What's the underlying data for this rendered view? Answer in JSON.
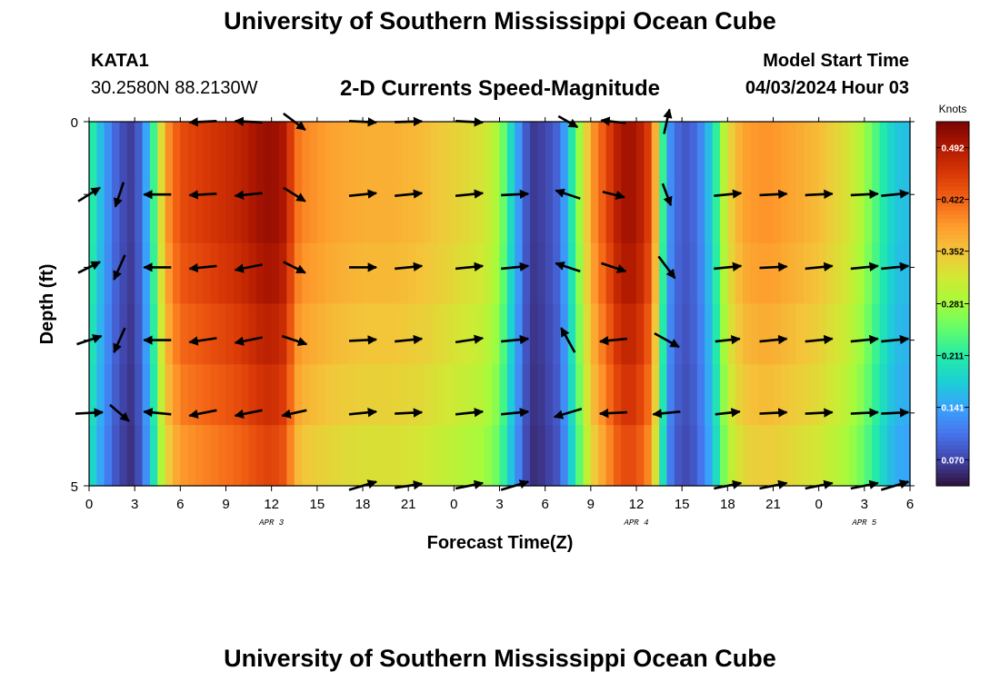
{
  "header": {
    "title": "University of Southern Mississippi Ocean Cube",
    "station": "KATA1",
    "coords": "30.2580N  88.2130W",
    "subtitle": "2-D Currents Speed-Magnitude",
    "model_start_label": "Model Start Time",
    "model_start_value": "04/03/2024 Hour 03"
  },
  "footer": {
    "title": "University of Southern Mississippi Ocean Cube"
  },
  "chart_data": {
    "type": "heatmap",
    "title": "2-D Currents Speed-Magnitude",
    "xlabel": "Forecast Time(Z)",
    "ylabel": "Depth (ft)",
    "x_tick_labels": [
      "0",
      "3",
      "6",
      "9",
      "12",
      "15",
      "18",
      "21",
      "0",
      "3",
      "6",
      "9",
      "12",
      "15",
      "18",
      "21",
      "0",
      "3",
      "6"
    ],
    "x_range_hours": [
      0,
      54
    ],
    "y_range": [
      0,
      5
    ],
    "y_tick_labels": [
      "0",
      "5"
    ],
    "y_tick_values": [
      0,
      5
    ],
    "date_labels": [
      {
        "text": "APR 3",
        "hour": 12
      },
      {
        "text": "APR 4",
        "hour": 36
      },
      {
        "text": "APR 5",
        "hour": 51
      }
    ],
    "colorbar": {
      "unit": "Knots",
      "min": 0.035,
      "max": 0.527,
      "tick_labels": [
        "0.070",
        "0.141",
        "0.211",
        "0.281",
        "0.352",
        "0.422",
        "0.492"
      ],
      "tick_values": [
        0.07,
        0.141,
        0.211,
        0.281,
        0.352,
        0.422,
        0.492
      ],
      "colors": [
        "#30123b",
        "#4145ab",
        "#4675ed",
        "#39a2fc",
        "#1bcfd4",
        "#24eca6",
        "#61fc6c",
        "#a4fc3b",
        "#d1e834",
        "#f3c63a",
        "#fe9b2d",
        "#f36315",
        "#d93806",
        "#b11901",
        "#7a0403"
      ]
    },
    "depth_rows": [
      0,
      1,
      2,
      3,
      4,
      5
    ],
    "speed_profile_hours": [
      0,
      1,
      2,
      3,
      4,
      4.5,
      5,
      6,
      8,
      10,
      11,
      12,
      13,
      13.5,
      14,
      16,
      18,
      20,
      22,
      24,
      26,
      27,
      28,
      29,
      30,
      31,
      32,
      33,
      34,
      35,
      36,
      37,
      37.5,
      38,
      39,
      40,
      41,
      42,
      43,
      44,
      45,
      46,
      47,
      48,
      49,
      50,
      51,
      52,
      53,
      54
    ],
    "speed_profile_knots": [
      0.23,
      0.14,
      0.08,
      0.06,
      0.17,
      0.28,
      0.38,
      0.44,
      0.46,
      0.48,
      0.5,
      0.51,
      0.49,
      0.42,
      0.4,
      0.38,
      0.37,
      0.37,
      0.36,
      0.34,
      0.32,
      0.28,
      0.16,
      0.06,
      0.07,
      0.1,
      0.24,
      0.38,
      0.44,
      0.5,
      0.5,
      0.44,
      0.3,
      0.14,
      0.08,
      0.1,
      0.18,
      0.33,
      0.38,
      0.39,
      0.39,
      0.38,
      0.37,
      0.36,
      0.34,
      0.32,
      0.28,
      0.22,
      0.17,
      0.16
    ],
    "depth_factor": [
      1.0,
      1.0,
      0.98,
      0.95,
      0.92,
      0.88
    ],
    "vector_hours": [
      0,
      2,
      4.5,
      7.5,
      10.5,
      13.5,
      18,
      21,
      25,
      28,
      31.5,
      34.5,
      38,
      42,
      45,
      48,
      51,
      53
    ],
    "vectors": [
      {
        "depth": 0,
        "u": [
          0,
          0,
          0,
          -1.0,
          -1.0,
          0.8,
          1.0,
          1.0,
          1.0,
          0,
          0.7,
          -0.9,
          0.2,
          0,
          0,
          0,
          0,
          0
        ],
        "v": [
          0,
          0,
          0,
          0.05,
          -0.05,
          0.6,
          0.05,
          -0.03,
          0.05,
          0,
          0.4,
          -0.1,
          -0.9,
          0,
          0,
          0,
          0,
          0
        ]
      },
      {
        "depth": 1,
        "u": [
          0.8,
          -0.3,
          -1.0,
          -1.0,
          -1.0,
          0.8,
          1.0,
          1.0,
          1.0,
          1.0,
          -0.9,
          0.8,
          0.3,
          1.0,
          1.0,
          1.0,
          1.0,
          1.0
        ],
        "v": [
          -0.5,
          0.9,
          0.0,
          0.05,
          0.1,
          0.5,
          -0.1,
          -0.1,
          -0.1,
          -0.05,
          -0.3,
          0.2,
          0.8,
          -0.1,
          -0.05,
          -0.05,
          -0.05,
          -0.1
        ]
      },
      {
        "depth": 2,
        "u": [
          0.8,
          -0.4,
          -1.0,
          -1.0,
          -1.0,
          0.8,
          1.0,
          1.0,
          1.0,
          1.0,
          -0.9,
          0.9,
          0.6,
          1.0,
          1.0,
          1.0,
          1.0,
          1.0
        ],
        "v": [
          -0.4,
          0.9,
          0.0,
          0.1,
          0.2,
          0.4,
          0.0,
          -0.1,
          -0.1,
          -0.1,
          -0.3,
          0.3,
          0.8,
          -0.1,
          -0.05,
          -0.1,
          -0.1,
          -0.1
        ]
      },
      {
        "depth": 3,
        "u": [
          0.9,
          -0.4,
          -1.0,
          -1.0,
          -1.0,
          0.9,
          1.0,
          1.0,
          1.0,
          1.0,
          -0.5,
          -1.0,
          0.9,
          0.9,
          1.0,
          1.0,
          1.0,
          1.0
        ],
        "v": [
          -0.3,
          0.9,
          0.0,
          0.15,
          0.2,
          0.3,
          -0.05,
          -0.1,
          -0.15,
          -0.1,
          -0.9,
          0.1,
          0.5,
          -0.1,
          -0.1,
          -0.1,
          -0.1,
          -0.1
        ]
      },
      {
        "depth": 4,
        "u": [
          1.0,
          0.7,
          -1.0,
          -1.0,
          -1.0,
          -0.9,
          1.0,
          1.0,
          1.0,
          1.0,
          -1.0,
          -1.0,
          -1.0,
          0.9,
          1.0,
          1.0,
          1.0,
          1.0
        ],
        "v": [
          -0.05,
          0.6,
          -0.1,
          0.2,
          0.2,
          0.2,
          -0.1,
          -0.05,
          -0.1,
          -0.1,
          0.3,
          0.05,
          0.1,
          -0.1,
          -0.05,
          -0.05,
          -0.05,
          -0.05
        ]
      },
      {
        "depth": 5,
        "u": [
          0,
          0,
          0,
          0,
          0,
          0,
          1.0,
          1.0,
          1.0,
          1.0,
          0,
          0,
          0,
          1.0,
          1.0,
          1.0,
          1.0,
          1.0
        ],
        "v": [
          0,
          0,
          0,
          0,
          0,
          0,
          -0.3,
          -0.15,
          -0.2,
          -0.3,
          0,
          0,
          0,
          -0.2,
          -0.2,
          -0.2,
          -0.2,
          -0.3
        ]
      }
    ]
  }
}
